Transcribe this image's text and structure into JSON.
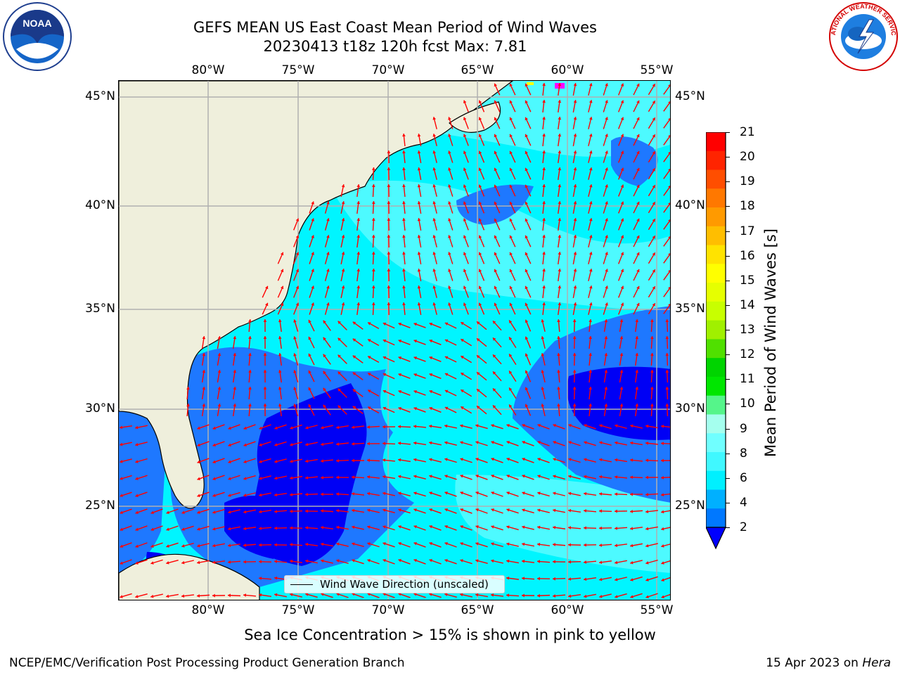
{
  "title_line1": "GEFS MEAN US East Coast Mean Period of Wind Waves",
  "title_line2": "20230413 t18z 120h fcst   Max: 7.81",
  "lon_ticks": [
    "80°W",
    "75°W",
    "70°W",
    "65°W",
    "60°W",
    "55°W"
  ],
  "lat_ticks": [
    "45°N",
    "40°N",
    "35°N",
    "30°N",
    "25°N"
  ],
  "legend_label": "Wind Wave Direction (unscaled)",
  "colorbar": {
    "label": "Mean Period of Wind Waves [s]",
    "ticks": [
      "21",
      "20",
      "19",
      "18",
      "17",
      "16",
      "15",
      "14",
      "13",
      "12",
      "11",
      "10",
      "9",
      "8",
      "6",
      "4",
      "2"
    ],
    "colors": [
      "#ff0000",
      "#ff2400",
      "#ff4e00",
      "#ff7800",
      "#ff9a00",
      "#ffbe00",
      "#ffe300",
      "#ffff00",
      "#e6ff00",
      "#c8ff00",
      "#a0f000",
      "#50e000",
      "#00d400",
      "#00e600",
      "#55f58a",
      "#a5ffee",
      "#70ffff",
      "#40f8ff",
      "#00f0ff",
      "#00b0ff",
      "#0078ff"
    ],
    "under_color": "#0000ff"
  },
  "fill_colors": {
    "land": "#efefdc",
    "ocean_light": "#00f5ff",
    "ocean_mid": "#55fbff",
    "ocean_blue": "#1e78ff",
    "ocean_dark": "#0000f5",
    "arrow": "#ff0000",
    "ice": "#ff00ff"
  },
  "footnote": "Sea Ice Concentration > 15% is shown in pink to yellow",
  "footer_left": "NCEP/EMC/Verification Post Processing Product Generation Branch",
  "footer_date": "15 Apr 2023 on ",
  "footer_machine": "Hera",
  "logos": {
    "left": "NOAA",
    "right": "NATIONAL WEATHER SERVICE"
  }
}
